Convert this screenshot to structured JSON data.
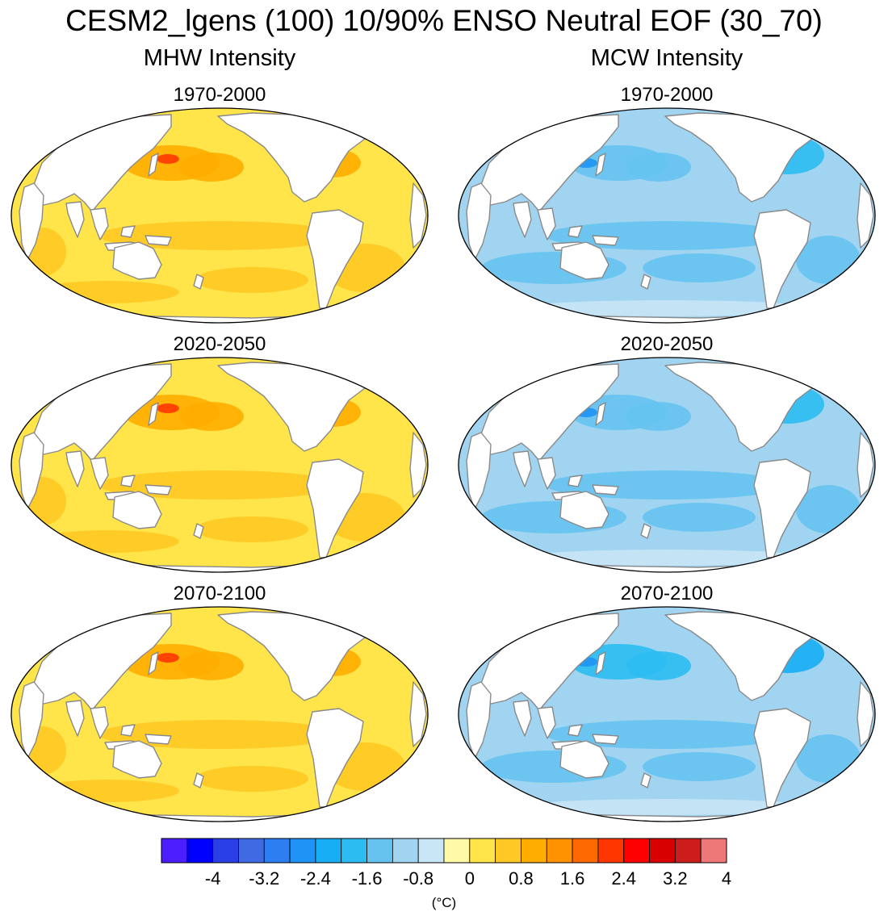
{
  "figure": {
    "title": "CESM2_lgens (100) 10/90% ENSO Neutral EOF (30_70)",
    "columns": [
      {
        "title": "MHW Intensity",
        "variable": "marine heatwave intensity"
      },
      {
        "title": "MCW Intensity",
        "variable": "marine cold-spell intensity"
      }
    ],
    "panel_titles": [
      "1970-2000",
      "2020-2050",
      "2070-2100",
      "1970-2000",
      "2020-2050",
      "2070-2100"
    ],
    "map_projection": "Robinson, Pacific-centred"
  },
  "colorbar": {
    "units": "(°C)",
    "tick_labels": [
      "-4",
      "-3.2",
      "-2.4",
      "-1.6",
      "-0.8",
      "0",
      "0.8",
      "1.6",
      "2.4",
      "3.2",
      "4"
    ],
    "tick_values": [
      -4,
      -3.2,
      -2.4,
      -1.6,
      -0.8,
      0,
      0.8,
      1.6,
      2.4,
      3.2,
      4
    ],
    "colors": [
      "#4b1dff",
      "#0000ff",
      "#2a3fe6",
      "#3f6ae3",
      "#2d7ef0",
      "#1f93f5",
      "#17aef5",
      "#2cbcf2",
      "#66c3f0",
      "#a0d4f0",
      "#c8e6f6",
      "#fff9a8",
      "#ffe44a",
      "#ffc824",
      "#ffad00",
      "#ff9200",
      "#ff6a00",
      "#ff3600",
      "#ff0000",
      "#d80000",
      "#cc1d1d",
      "#ee7878"
    ]
  },
  "land_color": "#ffffff",
  "coastline_color": "#8a8a8a"
}
